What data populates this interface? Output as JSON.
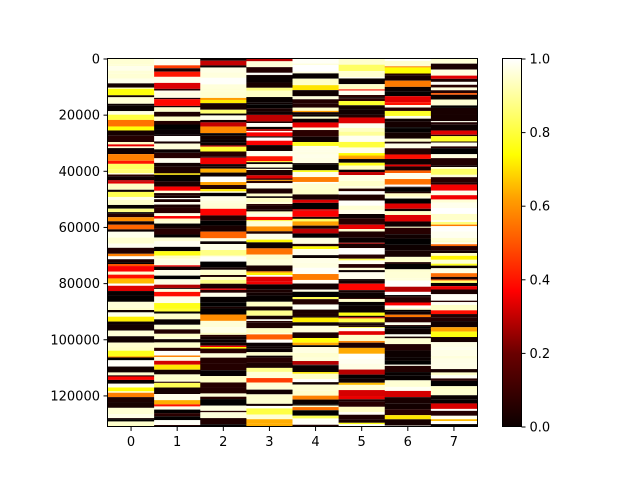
{
  "chart_data": {
    "type": "heatmap",
    "title": "",
    "xlabel": "",
    "ylabel": "",
    "colormap": "hot",
    "x_categories": [
      "0",
      "1",
      "2",
      "3",
      "4",
      "5",
      "6",
      "7"
    ],
    "yticks": [
      "0",
      "20000",
      "40000",
      "60000",
      "80000",
      "100000",
      "120000"
    ],
    "ylim": [
      0,
      131072
    ],
    "y_inverted": true,
    "colorbar": {
      "range": [
        0.0,
        1.0
      ],
      "ticks": [
        "0.0",
        "0.2",
        "0.4",
        "0.6",
        "0.8",
        "1.0"
      ]
    },
    "values_note_visible": false,
    "bands_per_column": 110,
    "seed": 1337
  }
}
